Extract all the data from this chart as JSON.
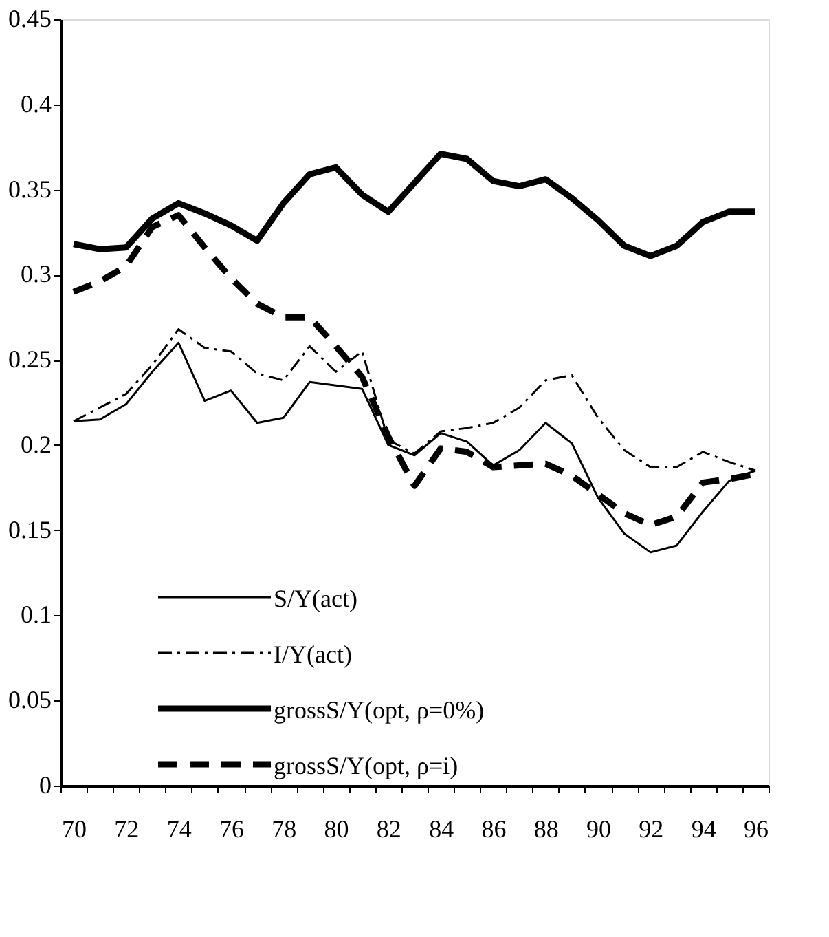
{
  "chart_data": {
    "type": "line",
    "categories": [
      "70",
      null,
      "72",
      null,
      "74",
      null,
      "76",
      null,
      "78",
      null,
      "80",
      null,
      "82",
      null,
      "84",
      null,
      "86",
      null,
      "88",
      null,
      "90",
      null,
      "92",
      null,
      "94",
      null,
      "96"
    ],
    "series": [
      {
        "name": "S/Y(act)",
        "color": "#000000",
        "line_style": "solid",
        "values": [
          0.214,
          0.215,
          0.224,
          0.243,
          0.26,
          0.226,
          0.232,
          0.213,
          0.216,
          0.237,
          0.235,
          0.233,
          0.2,
          0.194,
          0.207,
          0.202,
          0.188,
          0.197,
          0.213,
          0.201,
          0.169,
          0.148,
          0.137,
          0.141,
          0.161,
          0.179,
          0.185
        ]
      },
      {
        "name": "I/Y(act)",
        "color": "#000000",
        "line_style": "dashed",
        "values": [
          0.214,
          0.222,
          0.23,
          0.247,
          0.268,
          0.257,
          0.255,
          0.242,
          0.238,
          0.258,
          0.243,
          0.255,
          0.203,
          0.195,
          0.208,
          0.21,
          0.213,
          0.222,
          0.238,
          0.241,
          0.216,
          0.197,
          0.187,
          0.187,
          0.196,
          0.19,
          0.185
        ]
      },
      {
        "name": "grossS/Y(opt, ρ=0%)",
        "color": "#000000",
        "line_style": "solid",
        "values": [
          0.318,
          0.315,
          0.316,
          0.333,
          0.342,
          0.336,
          0.329,
          0.32,
          0.342,
          0.359,
          0.363,
          0.347,
          0.337,
          0.354,
          0.371,
          0.368,
          0.355,
          0.352,
          0.356,
          0.345,
          0.332,
          0.317,
          0.311,
          0.317,
          0.331,
          0.337,
          0.337
        ]
      },
      {
        "name": "grossS/Y(opt, ρ=i)",
        "color": "#000000",
        "line_style": "dashed",
        "values": [
          0.29,
          0.296,
          0.305,
          0.328,
          0.335,
          0.316,
          0.298,
          0.283,
          0.275,
          0.275,
          0.258,
          0.24,
          0.205,
          0.176,
          0.198,
          0.196,
          0.187,
          0.188,
          0.189,
          0.182,
          0.171,
          0.16,
          0.153,
          0.158,
          0.178,
          0.18,
          0.183
        ]
      }
    ],
    "ylim": [
      0,
      0.45
    ],
    "yticks": [
      0,
      0.05,
      0.1,
      0.15,
      0.2,
      0.25,
      0.3,
      0.35,
      0.4,
      0.45
    ],
    "grid": false,
    "legend": "bottom left",
    "marker": "none"
  }
}
